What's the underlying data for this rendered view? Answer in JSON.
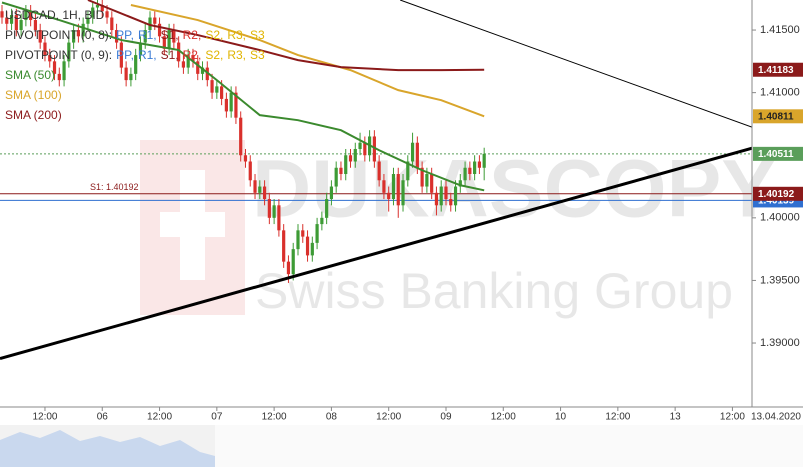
{
  "chart_data": {
    "type": "candlestick",
    "title": "USDCAD, 1H, BID",
    "indicators": [
      {
        "name": "PIVOTPOINT (0, 8):",
        "parts": [
          {
            "text": "PP,",
            "color": "#3a7bd5"
          },
          {
            "text": "R1,",
            "color": "#3a7bd5"
          },
          {
            "text": "S1,",
            "color": "#8b1a1a"
          },
          {
            "text": "R2,",
            "color": "#d9302c"
          },
          {
            "text": "S2,",
            "color": "#e0b400"
          },
          {
            "text": "R3,",
            "color": "#e0b400"
          },
          {
            "text": "S3",
            "color": "#e0b400"
          }
        ]
      },
      {
        "name": "PIVOTPOINT (0, 9):",
        "parts": [
          {
            "text": "PP,",
            "color": "#3a7bd5"
          },
          {
            "text": "R1,",
            "color": "#3a7bd5"
          },
          {
            "text": "S1,",
            "color": "#8b1a1a"
          },
          {
            "text": "R2,",
            "color": "#d9302c"
          },
          {
            "text": "S2,",
            "color": "#e0b400"
          },
          {
            "text": "R3,",
            "color": "#e0b400"
          },
          {
            "text": "S3",
            "color": "#e0b400"
          }
        ]
      }
    ],
    "up_color": "#3d9b35",
    "down_color": "#d9302c",
    "x": [
      3,
      4,
      5,
      6,
      7,
      8,
      9,
      10,
      11,
      12,
      13,
      14,
      15,
      16,
      17,
      18,
      19,
      20,
      21,
      22,
      23,
      24,
      25,
      26,
      27,
      28,
      29,
      30,
      31,
      32,
      33,
      34,
      35,
      36,
      37,
      38,
      39,
      40,
      41,
      42,
      43,
      44,
      45,
      46,
      47,
      48,
      49,
      50,
      51,
      52,
      53,
      54,
      55,
      56,
      57,
      58,
      59,
      60,
      61,
      62,
      63,
      64,
      65,
      66,
      67,
      68,
      69,
      70,
      71,
      72,
      73,
      74,
      75,
      76,
      77,
      78,
      79,
      80,
      81,
      82,
      83,
      84,
      85,
      86,
      87,
      88,
      89,
      90,
      91,
      92,
      93,
      94,
      95,
      96,
      97,
      98,
      99,
      100,
      101,
      102,
      103,
      104
    ],
    "ohlc": [
      [
        1.4165,
        1.417,
        1.4155,
        1.416
      ],
      [
        1.416,
        1.4165,
        1.415,
        1.4155
      ],
      [
        1.4155,
        1.4167,
        1.415,
        1.4162
      ],
      [
        1.4162,
        1.4167,
        1.4145,
        1.415
      ],
      [
        1.415,
        1.4163,
        1.4145,
        1.4158
      ],
      [
        1.4158,
        1.417,
        1.4153,
        1.4165
      ],
      [
        1.4165,
        1.417,
        1.4153,
        1.4158
      ],
      [
        1.4158,
        1.4163,
        1.4145,
        1.415
      ],
      [
        1.415,
        1.4155,
        1.4135,
        1.414
      ],
      [
        1.414,
        1.4145,
        1.4125,
        1.413
      ],
      [
        1.413,
        1.4135,
        1.412,
        1.4125
      ],
      [
        1.4125,
        1.413,
        1.411,
        1.4115
      ],
      [
        1.4115,
        1.412,
        1.4105,
        1.411
      ],
      [
        1.411,
        1.413,
        1.4105,
        1.4125
      ],
      [
        1.4125,
        1.4145,
        1.412,
        1.414
      ],
      [
        1.414,
        1.4155,
        1.4135,
        1.415
      ],
      [
        1.415,
        1.4155,
        1.414,
        1.4145
      ],
      [
        1.4145,
        1.416,
        1.414,
        1.4155
      ],
      [
        1.4155,
        1.4165,
        1.415,
        1.416
      ],
      [
        1.416,
        1.4173,
        1.4155,
        1.4168
      ],
      [
        1.4168,
        1.4175,
        1.4163,
        1.417
      ],
      [
        1.417,
        1.4175,
        1.416,
        1.4165
      ],
      [
        1.4165,
        1.417,
        1.4155,
        1.416
      ],
      [
        1.416,
        1.4165,
        1.4145,
        1.415
      ],
      [
        1.415,
        1.4155,
        1.4135,
        1.414
      ],
      [
        1.414,
        1.4145,
        1.4115,
        1.412
      ],
      [
        1.412,
        1.4125,
        1.4105,
        1.411
      ],
      [
        1.411,
        1.412,
        1.4105,
        1.4115
      ],
      [
        1.4115,
        1.4135,
        1.411,
        1.413
      ],
      [
        1.413,
        1.4145,
        1.4125,
        1.414
      ],
      [
        1.414,
        1.4155,
        1.4135,
        1.415
      ],
      [
        1.415,
        1.4165,
        1.4145,
        1.416
      ],
      [
        1.416,
        1.4165,
        1.415,
        1.4155
      ],
      [
        1.4155,
        1.416,
        1.414,
        1.4145
      ],
      [
        1.4145,
        1.415,
        1.413,
        1.4135
      ],
      [
        1.4135,
        1.4155,
        1.413,
        1.415
      ],
      [
        1.415,
        1.4155,
        1.4135,
        1.414
      ],
      [
        1.414,
        1.4145,
        1.412,
        1.4125
      ],
      [
        1.4125,
        1.413,
        1.4115,
        1.412
      ],
      [
        1.412,
        1.4135,
        1.4115,
        1.413
      ],
      [
        1.413,
        1.4135,
        1.412,
        1.4125
      ],
      [
        1.4125,
        1.413,
        1.411,
        1.4115
      ],
      [
        1.4115,
        1.4125,
        1.411,
        1.412
      ],
      [
        1.412,
        1.4125,
        1.4105,
        1.411
      ],
      [
        1.411,
        1.4115,
        1.4095,
        1.41
      ],
      [
        1.41,
        1.411,
        1.4095,
        1.4105
      ],
      [
        1.4105,
        1.411,
        1.409,
        1.4095
      ],
      [
        1.4095,
        1.41,
        1.408,
        1.4085
      ],
      [
        1.4085,
        1.4105,
        1.408,
        1.41
      ],
      [
        1.41,
        1.4105,
        1.4075,
        1.408
      ],
      [
        1.408,
        1.4085,
        1.4045,
        1.405
      ],
      [
        1.405,
        1.4055,
        1.404,
        1.4045
      ],
      [
        1.4045,
        1.405,
        1.4025,
        1.403
      ],
      [
        1.403,
        1.4035,
        1.4015,
        1.402
      ],
      [
        1.402,
        1.403,
        1.4015,
        1.4025
      ],
      [
        1.4025,
        1.403,
        1.401,
        1.4015
      ],
      [
        1.4015,
        1.402,
        1.3995,
        1.4
      ],
      [
        1.4,
        1.4015,
        1.3995,
        1.401
      ],
      [
        1.401,
        1.4015,
        1.3985,
        1.399
      ],
      [
        1.399,
        1.3995,
        1.396,
        1.3965
      ],
      [
        1.3965,
        1.397,
        1.3948,
        1.3955
      ],
      [
        1.3955,
        1.398,
        1.395,
        1.3975
      ],
      [
        1.3975,
        1.3995,
        1.397,
        1.399
      ],
      [
        1.399,
        1.3995,
        1.398,
        1.3985
      ],
      [
        1.3985,
        1.399,
        1.3965,
        1.397
      ],
      [
        1.397,
        1.3985,
        1.3965,
        1.398
      ],
      [
        1.398,
        1.4,
        1.3975,
        1.3995
      ],
      [
        1.3995,
        1.4005,
        1.399,
        1.4
      ],
      [
        1.4,
        1.402,
        1.3995,
        1.4015
      ],
      [
        1.4015,
        1.403,
        1.401,
        1.4025
      ],
      [
        1.4025,
        1.4045,
        1.402,
        1.404
      ],
      [
        1.404,
        1.4045,
        1.403,
        1.4035
      ],
      [
        1.4035,
        1.4055,
        1.403,
        1.405
      ],
      [
        1.405,
        1.4055,
        1.404,
        1.4045
      ],
      [
        1.4045,
        1.406,
        1.404,
        1.4055
      ],
      [
        1.4055,
        1.4068,
        1.405,
        1.406
      ],
      [
        1.406,
        1.4065,
        1.4045,
        1.405
      ],
      [
        1.405,
        1.407,
        1.4045,
        1.4065
      ],
      [
        1.4065,
        1.407,
        1.404,
        1.4045
      ],
      [
        1.4045,
        1.405,
        1.4025,
        1.403
      ],
      [
        1.403,
        1.4035,
        1.4015,
        1.402
      ],
      [
        1.402,
        1.4025,
        1.4005,
        1.4015
      ],
      [
        1.4015,
        1.404,
        1.401,
        1.4035
      ],
      [
        1.4035,
        1.404,
        1.4,
        1.401
      ],
      [
        1.401,
        1.4035,
        1.4005,
        1.403
      ],
      [
        1.403,
        1.405,
        1.4025,
        1.4045
      ],
      [
        1.4045,
        1.4068,
        1.404,
        1.406
      ],
      [
        1.406,
        1.4065,
        1.4035,
        1.404
      ],
      [
        1.404,
        1.4045,
        1.402,
        1.4025
      ],
      [
        1.4025,
        1.404,
        1.402,
        1.4035
      ],
      [
        1.4035,
        1.404,
        1.4015,
        1.402
      ],
      [
        1.402,
        1.4025,
        1.4002,
        1.401
      ],
      [
        1.401,
        1.403,
        1.4005,
        1.4025
      ],
      [
        1.4025,
        1.403,
        1.401,
        1.4015
      ],
      [
        1.4015,
        1.402,
        1.4005,
        1.401
      ],
      [
        1.401,
        1.403,
        1.4005,
        1.4025
      ],
      [
        1.4025,
        1.4035,
        1.402,
        1.403
      ],
      [
        1.403,
        1.4045,
        1.4025,
        1.404
      ],
      [
        1.404,
        1.4045,
        1.403,
        1.4035
      ],
      [
        1.4035,
        1.405,
        1.403,
        1.4045
      ],
      [
        1.4045,
        1.405,
        1.4035,
        1.404
      ],
      [
        1.404,
        1.4056,
        1.403,
        1.40511
      ]
    ],
    "series": [
      {
        "name": "SMA (50)",
        "color": "#3b8a2e",
        "x": [
          3,
          15,
          28,
          40,
          48,
          57,
          65,
          74,
          82,
          91,
          99,
          104
        ],
        "values": [
          1.4172,
          1.4158,
          1.4142,
          1.4134,
          1.411,
          1.4082,
          1.4078,
          1.407,
          1.4054,
          1.4038,
          1.4026,
          1.4022
        ]
      },
      {
        "name": "SMA (100)",
        "color": "#d9a52b",
        "tag": true,
        "tag_text": "#222",
        "x": [
          30,
          44,
          57,
          65,
          76,
          86,
          95,
          104
        ],
        "values": [
          1.417,
          1.4158,
          1.4142,
          1.413,
          1.4118,
          1.4102,
          1.4094,
          1.40811
        ]
      },
      {
        "name": "SMA (200)",
        "color": "#8b1a1a",
        "tag": true,
        "x": [
          21,
          34,
          44,
          57,
          65,
          74,
          86,
          95,
          104
        ],
        "values": [
          1.4174,
          1.4154,
          1.4146,
          1.4134,
          1.4126,
          1.41204,
          1.4118,
          1.4118,
          1.41183
        ]
      }
    ],
    "trendlines": [
      {
        "x": [
          2.58,
          160.1
        ],
        "values": [
          1.38876,
          1.40556
        ],
        "width": 3
      },
      {
        "x": [
          86.4,
          160.1
        ],
        "values": [
          1.4174,
          1.40724
        ],
        "width": 1
      }
    ],
    "levels": [
      {
        "value": 1.40139,
        "color": "#2f6fd0"
      },
      {
        "value": 1.40192,
        "color": "#8b1a1a",
        "label": "S1: 1.40192"
      },
      {
        "value": 1.40511,
        "color": "#5a9e5a",
        "dashed": true
      }
    ],
    "xlim": [
      2.58,
      160.1
    ],
    "xticks": [
      {
        "value": 12,
        "label": "12:00"
      },
      {
        "value": 24,
        "label": "06"
      },
      {
        "value": 36,
        "label": "12:00"
      },
      {
        "value": 48,
        "label": "07"
      },
      {
        "value": 60,
        "label": "12:00"
      },
      {
        "value": 72,
        "label": "08"
      },
      {
        "value": 84,
        "label": "12:00"
      },
      {
        "value": 96,
        "label": "09"
      },
      {
        "value": 108,
        "label": "12:00"
      },
      {
        "value": 120,
        "label": "10"
      },
      {
        "value": 132,
        "label": "12:00"
      },
      {
        "value": 144,
        "label": "13"
      },
      {
        "value": 156,
        "label": "12:00"
      }
    ],
    "x_end_label": "13.04.2020",
    "ylim": [
      1.38489,
      1.4174
    ],
    "yticks": [
      {
        "value": 1.415,
        "label": "1.41500"
      },
      {
        "value": 1.41,
        "label": "1.41000"
      },
      {
        "value": 1.4,
        "label": "1.40000"
      },
      {
        "value": 1.395,
        "label": "1.39500"
      },
      {
        "value": 1.39,
        "label": "1.39000"
      }
    ],
    "watermark": [
      "DUKASCOPY",
      "Swiss Banking Group"
    ]
  }
}
